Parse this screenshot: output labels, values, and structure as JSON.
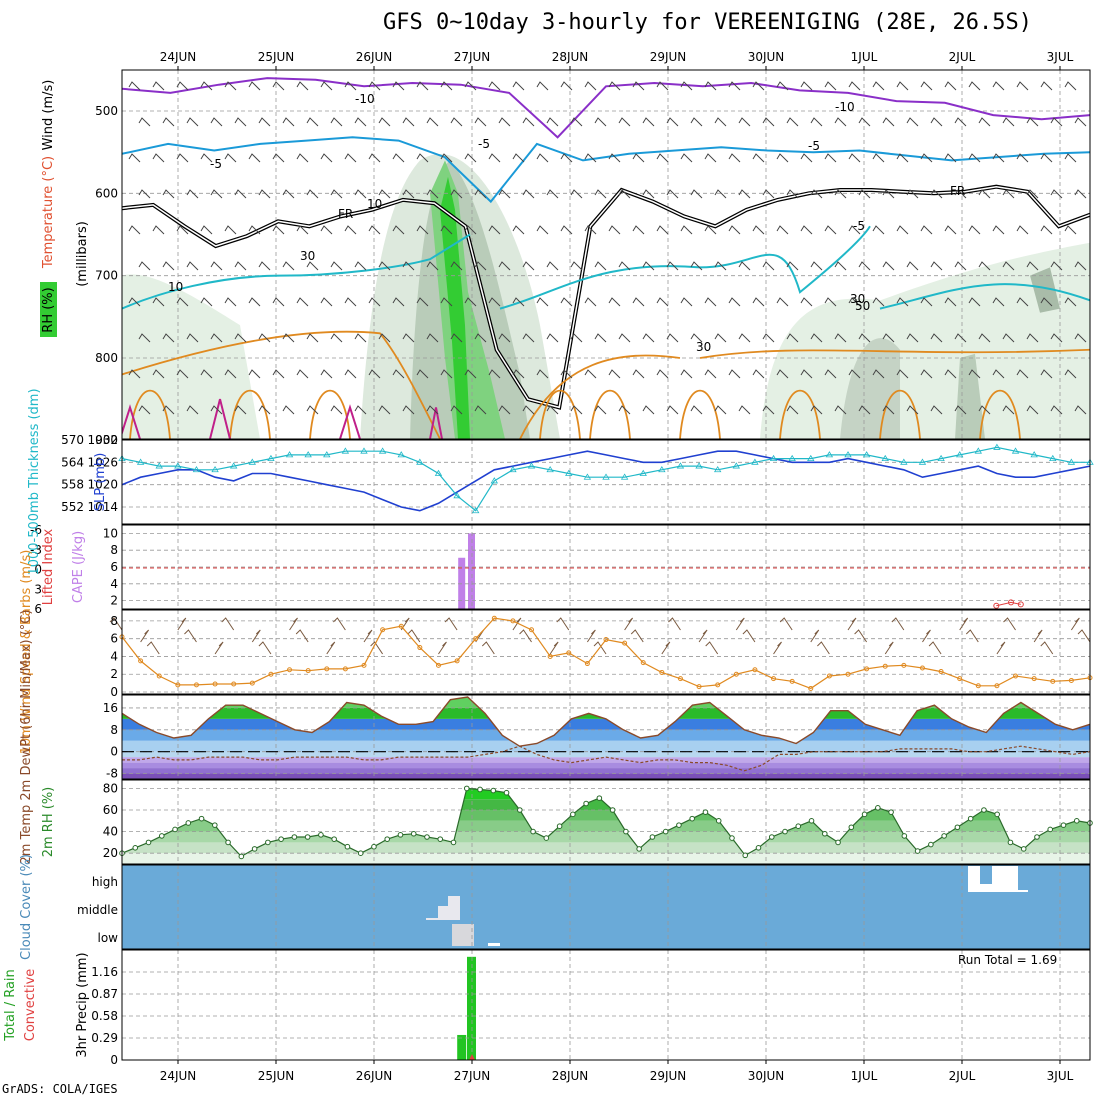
{
  "title": "GFS 0~10day 3-hourly for VEREENIGING (28E, 26.5S)",
  "credit": "GrADS: COLA/IGES",
  "date_labels": [
    "24JUN",
    "25JUN",
    "26JUN",
    "27JUN",
    "28JUN",
    "29JUN",
    "30JUN",
    "1JUL",
    "2JUL",
    "3JUL"
  ],
  "colors": {
    "purple": "#8a2fc8",
    "cyan": "#1a9ad8",
    "teal": "#20b8c8",
    "orange": "#e08a20",
    "green": "#22c422",
    "blue": "#2040d0",
    "frame": "#000"
  },
  "chart_data": [
    {
      "type": "heatmap",
      "name": "upper-air cross-section",
      "ylabel": "(millibars)",
      "ylabels_left": [
        "Wind (m/s)",
        "Temperature (°C)",
        "RH (%)"
      ],
      "y_ticks": [
        500,
        600,
        700,
        800
      ],
      "contour_labels": [
        "-10",
        "-10",
        "-5",
        "-5",
        "-5",
        "-5",
        "FR",
        "FR",
        "10",
        "30",
        "30",
        "50",
        "30",
        "10"
      ],
      "freezing_level_mb": [
        618,
        614,
        640,
        664,
        652,
        634,
        640,
        628,
        620,
        608,
        612,
        640,
        790,
        850,
        860,
        640,
        596,
        610,
        628,
        640,
        620,
        608,
        600,
        596,
        596,
        598,
        600,
        598,
        592,
        598,
        640,
        626
      ],
      "minus10_level_mb": [
        473,
        478,
        468,
        460,
        462,
        470,
        466,
        468,
        478,
        532,
        470,
        466,
        470,
        466,
        475,
        478,
        488,
        490,
        505,
        510,
        505
      ],
      "minus5_level_mb": [
        552,
        540,
        548,
        540,
        536,
        532,
        536,
        556,
        610,
        540,
        560,
        552,
        548,
        544,
        548,
        550,
        548,
        554,
        560,
        556,
        552,
        550
      ]
    },
    {
      "type": "line",
      "name": "thickness and SLP",
      "ylabel_left": "1000-500mb Thickness (dm)",
      "ylabel_right": "SLP (mb)",
      "left_ticks": [
        552,
        558,
        564,
        570
      ],
      "right_ticks": [
        1014,
        1020,
        1026,
        1032
      ],
      "series": [
        {
          "name": "1000-500mb Thickness (dm)",
          "values": [
            565,
            564,
            563,
            563,
            562,
            562,
            563,
            564,
            565,
            566,
            566,
            566,
            567,
            567,
            567,
            566,
            564,
            561,
            555,
            551,
            559,
            562,
            563,
            562,
            561,
            560,
            560,
            560,
            561,
            562,
            563,
            563,
            562,
            563,
            564,
            565,
            565,
            565,
            566,
            566,
            566,
            565,
            564,
            564,
            565,
            566,
            567,
            568,
            567,
            566,
            565,
            564,
            564
          ]
        },
        {
          "name": "SLP (mb)",
          "values": [
            1020,
            1022,
            1023,
            1024,
            1024,
            1022,
            1021,
            1023,
            1023,
            1022,
            1021,
            1020,
            1019,
            1018,
            1016,
            1014,
            1013,
            1015,
            1018,
            1021,
            1024,
            1025,
            1026,
            1027,
            1028,
            1029,
            1028,
            1027,
            1026,
            1026,
            1027,
            1028,
            1029,
            1029,
            1028,
            1027,
            1026,
            1026,
            1026,
            1027,
            1026,
            1025,
            1024,
            1022,
            1023,
            1024,
            1025,
            1023,
            1022,
            1022,
            1023,
            1024,
            1025
          ]
        }
      ]
    },
    {
      "type": "bar",
      "name": "CAPE and Lifted Index",
      "ylabel_left": "Lifted Index",
      "ylabel_right": "CAPE (J/kg)",
      "left_ticks": [
        "-6",
        "-3",
        "0",
        "3",
        "6"
      ],
      "right_ticks": [
        2,
        4,
        6,
        8,
        10
      ],
      "cape_bars": [
        {
          "day": 2.9,
          "value": 7.1
        },
        {
          "day": 3.0,
          "value": 10
        }
      ],
      "lifted_index_points": [
        {
          "day": 8.35,
          "value": 5.5
        },
        {
          "day": 8.5,
          "value": 5.0
        },
        {
          "day": 8.6,
          "value": 5.3
        }
      ]
    },
    {
      "type": "line",
      "name": "10m wind",
      "ylabel": "10m Wind Speed & Barbs (m/s)",
      "y_ticks": [
        0,
        2,
        4,
        6,
        8
      ],
      "ylim": [
        0,
        9
      ],
      "series": [
        {
          "name": "10m Wind Speed",
          "values": [
            6.2,
            3.5,
            1.8,
            0.8,
            0.8,
            0.9,
            0.9,
            1.0,
            2.0,
            2.5,
            2.4,
            2.6,
            2.6,
            3.0,
            7.0,
            7.4,
            5.0,
            3.0,
            3.5,
            6.0,
            8.3,
            8.0,
            7.0,
            4.0,
            4.4,
            3.2,
            5.9,
            5.5,
            3.3,
            2.2,
            1.5,
            0.6,
            0.8,
            2.0,
            2.5,
            1.5,
            1.2,
            0.4,
            1.8,
            2.0,
            2.6,
            2.9,
            3.0,
            2.7,
            2.3,
            1.5,
            0.7,
            0.7,
            1.8,
            1.5,
            1.2,
            1.3,
            1.6
          ]
        }
      ]
    },
    {
      "type": "area",
      "name": "2m temperature and dewpoint",
      "ylabel": "2m Temp 2m DewPt (6hr Min/Max) (°C)",
      "y_ticks": [
        "-8",
        "0",
        "8",
        "16"
      ],
      "ylim": [
        -10,
        20
      ],
      "series": [
        {
          "name": "2m Temp",
          "values": [
            14,
            10,
            7,
            5,
            6,
            12,
            17,
            17,
            14,
            11,
            8,
            7,
            11,
            18,
            17,
            13,
            10,
            10,
            11,
            19,
            20,
            14,
            6,
            2,
            3,
            6,
            12,
            14,
            12,
            8,
            5,
            6,
            11,
            17,
            18,
            13,
            8,
            6,
            5,
            3,
            7,
            15,
            15,
            10,
            8,
            6,
            15,
            17,
            12,
            9,
            7,
            14,
            18,
            14,
            10,
            8,
            10
          ]
        },
        {
          "name": "2m DewPt",
          "values": [
            -3,
            -3,
            -2,
            -3,
            -3,
            -2,
            -2,
            -2,
            -3,
            -3,
            -2,
            -2,
            -2,
            -2,
            -3,
            -3,
            -2,
            -2,
            -2,
            -2,
            -2,
            -1,
            0,
            2,
            -1,
            -3,
            -4,
            -3,
            -2,
            -3,
            -4,
            -3,
            -3,
            -4,
            -4,
            -5,
            -7,
            -5,
            -1,
            -1,
            0,
            0,
            0,
            0,
            0,
            1,
            1,
            1,
            1,
            0,
            0,
            1,
            2,
            1,
            0,
            -1,
            0
          ]
        }
      ]
    },
    {
      "type": "area",
      "name": "2m RH",
      "ylabel": "2m RH (%)",
      "y_ticks": [
        20,
        40,
        60,
        80
      ],
      "ylim": [
        10,
        85
      ],
      "series": [
        {
          "name": "2m RH",
          "values": [
            20,
            25,
            30,
            36,
            42,
            48,
            52,
            46,
            30,
            17,
            24,
            30,
            33,
            35,
            35,
            37,
            33,
            26,
            20,
            26,
            33,
            37,
            38,
            35,
            33,
            30,
            80,
            79,
            78,
            76,
            60,
            40,
            34,
            45,
            56,
            66,
            71,
            60,
            40,
            24,
            35,
            40,
            46,
            52,
            58,
            50,
            34,
            18,
            25,
            35,
            40,
            45,
            50,
            38,
            30,
            44,
            56,
            62,
            58,
            36,
            22,
            28,
            36,
            44,
            52,
            60,
            56,
            30,
            24,
            35,
            42,
            46,
            50,
            48
          ]
        }
      ]
    },
    {
      "type": "bar",
      "name": "cloud cover",
      "ylabel": "Cloud Cover (%)",
      "y_ticks": [
        "high",
        "middle",
        "low"
      ]
    },
    {
      "type": "bar",
      "name": "precipitation",
      "ylabel": "3hr Precip (mm)",
      "ylabels_left": [
        "Total / Rain",
        "Convective"
      ],
      "y_ticks": [
        "0",
        "0.29",
        "0.58",
        "0.87",
        "1.16"
      ],
      "ylim": [
        0,
        1.45
      ],
      "run_total": "Run Total = 1.69",
      "bars": [
        {
          "day": 2.9,
          "value": 0.33
        },
        {
          "day": 3.0,
          "value": 1.36
        }
      ]
    }
  ]
}
